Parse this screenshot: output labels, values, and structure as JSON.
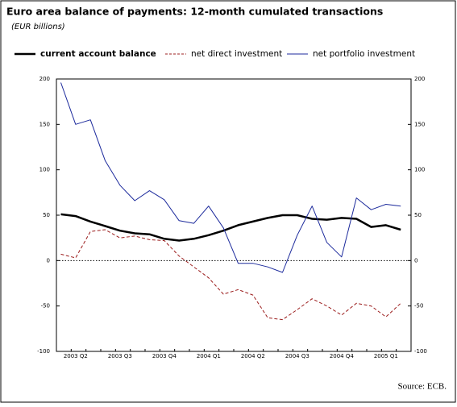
{
  "chart_data": {
    "type": "line",
    "title": "Euro area balance of payments: 12-month cumulated transactions",
    "subtitle": "(EUR billions)",
    "source": "Source: ECB.",
    "categories": [
      null,
      "2003 Q2",
      null,
      null,
      "2003 Q3",
      null,
      null,
      "2003 Q4",
      null,
      null,
      "2004 Q1",
      null,
      null,
      "2004 Q2",
      null,
      null,
      "2004 Q3",
      null,
      null,
      "2004 Q4",
      null,
      null,
      "2005 Q1",
      null
    ],
    "series": [
      {
        "name": "current account balance",
        "color": "#000000",
        "dash": false,
        "width": 2.5,
        "values": [
          51,
          49,
          43,
          38,
          33,
          30,
          29,
          24,
          22,
          24,
          28,
          33,
          39,
          43,
          47,
          50,
          50,
          46,
          45,
          47,
          46,
          37,
          39,
          34
        ]
      },
      {
        "name": "net direct investment",
        "color": "#9b1c1c",
        "dash": true,
        "width": 1,
        "values": [
          7,
          3,
          32,
          34,
          25,
          27,
          23,
          22,
          5,
          -7,
          -19,
          -37,
          -32,
          -38,
          -63,
          -65,
          -54,
          -42,
          -50,
          -60,
          -47,
          -50,
          -62,
          -47
        ]
      },
      {
        "name": "net portfolio investment",
        "color": "#1c2a9c",
        "dash": false,
        "width": 1,
        "values": [
          196,
          150,
          155,
          110,
          83,
          66,
          77,
          67,
          44,
          41,
          60,
          36,
          -3,
          -3,
          -7,
          -13,
          28,
          60,
          20,
          4,
          69,
          56,
          62,
          60
        ]
      }
    ],
    "ylim": [
      -100,
      200
    ],
    "yticks": [
      -100,
      -50,
      0,
      50,
      100,
      150,
      200
    ],
    "y2lim": [
      -100,
      200
    ],
    "y2ticks": [
      -100,
      -50,
      0,
      50,
      100,
      150,
      200
    ]
  }
}
